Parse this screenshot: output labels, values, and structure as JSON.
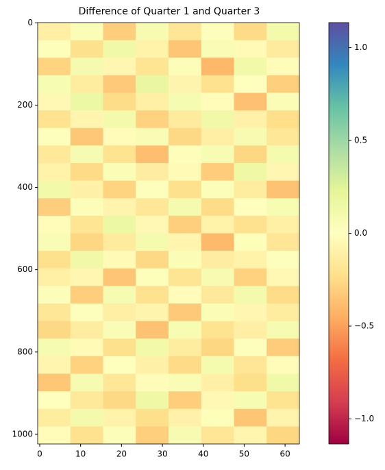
{
  "chart_data": {
    "type": "heatmap",
    "title": "Difference of Quarter 1 and Quarter 3",
    "xlim": [
      -0.5,
      63.5
    ],
    "ylim": [
      1023.5,
      -0.5
    ],
    "xticks": [
      0,
      10,
      20,
      30,
      40,
      50,
      60
    ],
    "yticks": [
      0,
      200,
      400,
      600,
      800,
      1000
    ],
    "colormap": [
      "#9e0142",
      "#d53e4f",
      "#f46d43",
      "#fdae61",
      "#fee08b",
      "#ffffbf",
      "#e6f598",
      "#abdda4",
      "#66c2a5",
      "#3288bd",
      "#5e4fa2"
    ],
    "clim": [
      -1.135,
      1.135
    ],
    "cticks": [
      {
        "value": -1.0,
        "label": "−1.0"
      },
      {
        "value": -0.5,
        "label": "−0.5"
      },
      {
        "value": 0.0,
        "label": "0.0"
      },
      {
        "value": 0.5,
        "label": "0.5"
      },
      {
        "value": 1.0,
        "label": "1.0"
      }
    ],
    "values": [
      [
        -0.12,
        0.05,
        -0.31,
        0.08,
        -0.18,
        0.02,
        -0.25,
        0.11
      ],
      [
        0.03,
        -0.22,
        0.14,
        -0.09,
        -0.35,
        0.06,
        -0.04,
        -0.15
      ],
      [
        -0.28,
        0.1,
        -0.06,
        -0.19,
        0.04,
        -0.41,
        0.12,
        -0.02
      ],
      [
        0.07,
        -0.14,
        -0.33,
        0.18,
        -0.08,
        -0.21,
        0.01,
        -0.3
      ],
      [
        -0.05,
        0.16,
        -0.24,
        -0.11,
        0.09,
        -0.03,
        -0.37,
        0.05
      ],
      [
        -0.2,
        -0.07,
        0.11,
        -0.29,
        -0.15,
        0.13,
        -0.1,
        -0.23
      ],
      [
        0.02,
        -0.34,
        -0.02,
        0.06,
        -0.26,
        -0.12,
        0.08,
        -0.17
      ],
      [
        -0.16,
        0.09,
        -0.2,
        -0.38,
        0.03,
        0.07,
        -0.27,
        0.1
      ],
      [
        -0.09,
        -0.25,
        0.05,
        -0.13,
        -0.04,
        -0.32,
        0.15,
        -0.06
      ],
      [
        0.12,
        -0.1,
        -0.28,
        0.02,
        -0.22,
        0.04,
        -0.14,
        -0.36
      ],
      [
        -0.31,
        0.04,
        -0.08,
        -0.17,
        0.1,
        -0.24,
        -0.01,
        0.07
      ],
      [
        -0.03,
        -0.19,
        0.17,
        -0.05,
        -0.3,
        -0.09,
        -0.21,
        -0.11
      ],
      [
        0.06,
        -0.27,
        -0.15,
        0.1,
        -0.07,
        -0.4,
        0.03,
        -0.18
      ],
      [
        -0.22,
        0.13,
        -0.04,
        -0.26,
        0.05,
        -0.13,
        -0.09,
        0.02
      ],
      [
        -0.11,
        -0.06,
        -0.35,
        0.03,
        -0.19,
        0.08,
        -0.29,
        -0.05
      ],
      [
        0.04,
        -0.31,
        0.09,
        -0.21,
        -0.02,
        -0.16,
        0.11,
        -0.24
      ],
      [
        -0.17,
        0.02,
        -0.12,
        -0.08,
        -0.33,
        0.05,
        -0.06,
        -0.14
      ],
      [
        -0.26,
        -0.13,
        0.06,
        -0.36,
        0.07,
        -0.2,
        -0.12,
        0.09
      ],
      [
        0.09,
        -0.04,
        -0.22,
        0.12,
        -0.14,
        -0.27,
        0.02,
        -0.32
      ],
      [
        -0.07,
        -0.29,
        0.01,
        -0.1,
        -0.25,
        0.1,
        -0.18,
        -0.03
      ],
      [
        -0.34,
        0.08,
        -0.17,
        -0.02,
        0.06,
        -0.11,
        -0.23,
        0.14
      ],
      [
        0.01,
        -0.16,
        -0.26,
        0.15,
        -0.31,
        -0.05,
        0.07,
        -0.2
      ],
      [
        -0.14,
        0.11,
        -0.09,
        -0.23,
        -0.1,
        0.03,
        -0.35,
        -0.08
      ],
      [
        -0.02,
        -0.21,
        0.04,
        -0.3,
        0.08,
        -0.18,
        -0.07,
        -0.27
      ]
    ]
  }
}
